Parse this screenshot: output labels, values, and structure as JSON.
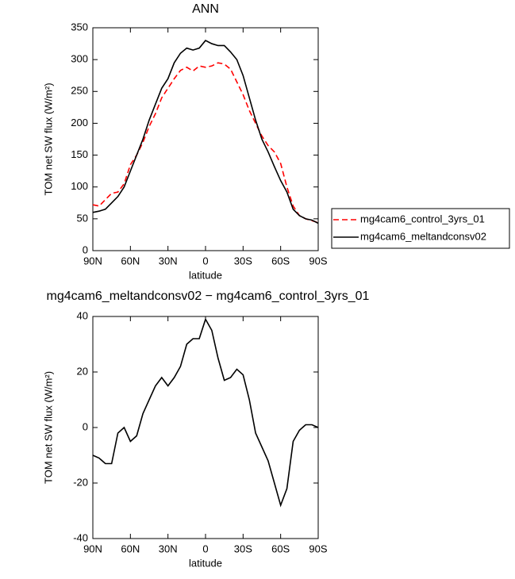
{
  "chart_data": [
    {
      "type": "line",
      "title": "ANN",
      "xlabel": "latitude",
      "ylabel": "TOM net SW flux (W/m²)",
      "x": [
        90,
        85,
        80,
        75,
        70,
        65,
        60,
        55,
        50,
        45,
        40,
        35,
        30,
        25,
        20,
        15,
        10,
        5,
        0,
        -5,
        -10,
        -15,
        -20,
        -25,
        -30,
        -35,
        -40,
        -45,
        -50,
        -55,
        -60,
        -65,
        -70,
        -75,
        -80,
        -85,
        -90
      ],
      "series": [
        {
          "name": "mg4cam6_control_3yrs_01",
          "color": "#ff0000",
          "dashed": true,
          "values": [
            72,
            70,
            80,
            90,
            92,
            105,
            135,
            150,
            170,
            195,
            215,
            240,
            255,
            270,
            283,
            288,
            282,
            290,
            288,
            290,
            295,
            293,
            285,
            265,
            245,
            220,
            200,
            180,
            165,
            155,
            137,
            100,
            70,
            55,
            50,
            47,
            44
          ]
        },
        {
          "name": "mg4cam6_meltandconsv02",
          "color": "#000000",
          "dashed": false,
          "values": [
            60,
            62,
            65,
            75,
            85,
            100,
            125,
            150,
            175,
            205,
            230,
            255,
            270,
            295,
            310,
            318,
            315,
            318,
            330,
            325,
            322,
            322,
            312,
            300,
            275,
            240,
            205,
            175,
            155,
            132,
            110,
            92,
            65,
            55,
            50,
            48,
            43
          ]
        }
      ],
      "xlim": [
        90,
        -90
      ],
      "xticks": [
        {
          "value": 90,
          "label": "90N"
        },
        {
          "value": 60,
          "label": "60N"
        },
        {
          "value": 30,
          "label": "30N"
        },
        0,
        {
          "value": -30,
          "label": "30S"
        },
        {
          "value": -60,
          "label": "60S"
        },
        {
          "value": -90,
          "label": "90S"
        }
      ],
      "ylim": [
        0,
        350
      ],
      "yticks": [
        0,
        50,
        100,
        150,
        200,
        250,
        300,
        350
      ],
      "legend": true
    },
    {
      "type": "line",
      "title": "mg4cam6_meltandconsv02 − mg4cam6_control_3yrs_01",
      "xlabel": "latitude",
      "ylabel": "TOM net SW flux (W/m²)",
      "x": [
        90,
        85,
        80,
        75,
        70,
        65,
        60,
        55,
        50,
        45,
        40,
        35,
        30,
        25,
        20,
        15,
        10,
        5,
        0,
        -5,
        -10,
        -15,
        -20,
        -25,
        -30,
        -35,
        -40,
        -45,
        -50,
        -55,
        -60,
        -65,
        -70,
        -75,
        -80,
        -85,
        -90
      ],
      "series": [
        {
          "color": "#000000",
          "dashed": false,
          "values": [
            -10,
            -11,
            -13,
            -13,
            -2,
            0,
            -5,
            -3,
            5,
            10,
            15,
            18,
            15,
            18,
            22,
            30,
            32,
            32,
            39,
            35,
            25,
            17,
            18,
            21,
            19,
            10,
            -2,
            -7,
            -12,
            -20,
            -28,
            -22,
            -5,
            -1,
            1,
            1,
            0
          ]
        }
      ],
      "xlim": [
        90,
        -90
      ],
      "xticks": [
        {
          "value": 90,
          "label": "90N"
        },
        {
          "value": 60,
          "label": "60N"
        },
        {
          "value": 30,
          "label": "30N"
        },
        0,
        {
          "value": -30,
          "label": "30S"
        },
        {
          "value": -60,
          "label": "60S"
        },
        {
          "value": -90,
          "label": "90S"
        }
      ],
      "ylim": [
        -40,
        40
      ],
      "yticks": [
        -40,
        -20,
        0,
        20,
        40
      ],
      "legend": false
    }
  ]
}
